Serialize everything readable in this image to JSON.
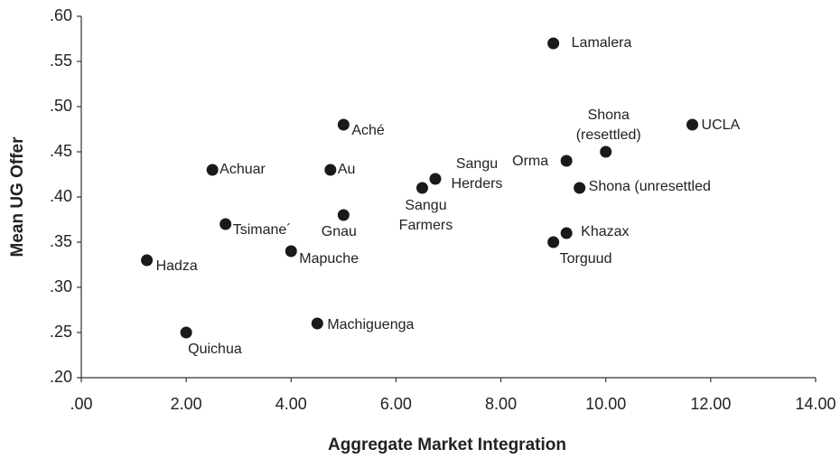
{
  "chart_data": {
    "type": "scatter",
    "xlabel": "Aggregate Market Integration",
    "ylabel": "Mean UG Offer",
    "x": [
      9.0,
      11.65,
      10.0,
      9.25,
      9.5,
      9.25,
      9.0,
      6.75,
      6.5,
      5.0,
      4.75,
      5.0,
      2.5,
      2.75,
      4.0,
      1.25,
      4.5,
      2.0
    ],
    "values": [
      0.57,
      0.48,
      0.45,
      0.44,
      0.41,
      0.36,
      0.35,
      0.42,
      0.41,
      0.48,
      0.43,
      0.38,
      0.43,
      0.37,
      0.34,
      0.33,
      0.26,
      0.25
    ],
    "labels": [
      "Lamalera",
      "UCLA",
      "Shona\n(resettled)",
      "Orma",
      "Shona (unresettled",
      "Khazax",
      "Torguud",
      "Sangu\nHerders",
      "Sangu\nFarmers",
      "Aché",
      "Au",
      "Gnau",
      "Achuar",
      "Tsimane´",
      "Mapuche",
      "Hadza",
      "Machiguenga",
      "Quichua"
    ],
    "color": "#1a1a1a",
    "grid": false,
    "xlim": [
      0,
      14
    ],
    "ylim": [
      0.2,
      0.6
    ],
    "xticks": [
      {
        "value": 0,
        "label": ".00"
      },
      {
        "value": 2,
        "label": "2.00"
      },
      {
        "value": 4,
        "label": "4.00"
      },
      {
        "value": 6,
        "label": "6.00"
      },
      {
        "value": 8,
        "label": "8.00"
      },
      {
        "value": 10,
        "label": "10.00"
      },
      {
        "value": 12,
        "label": "12.00"
      },
      {
        "value": 14,
        "label": "14.00"
      }
    ],
    "yticks": [
      {
        "value": 0.2,
        "label": ".20"
      },
      {
        "value": 0.25,
        "label": ".25"
      },
      {
        "value": 0.3,
        "label": ".30"
      },
      {
        "value": 0.35,
        "label": ".35"
      },
      {
        "value": 0.4,
        "label": ".40"
      },
      {
        "value": 0.45,
        "label": ".45"
      },
      {
        "value": 0.5,
        "label": ".50"
      },
      {
        "value": 0.55,
        "label": ".55"
      },
      {
        "value": 0.6,
        "label": ".60"
      }
    ]
  }
}
